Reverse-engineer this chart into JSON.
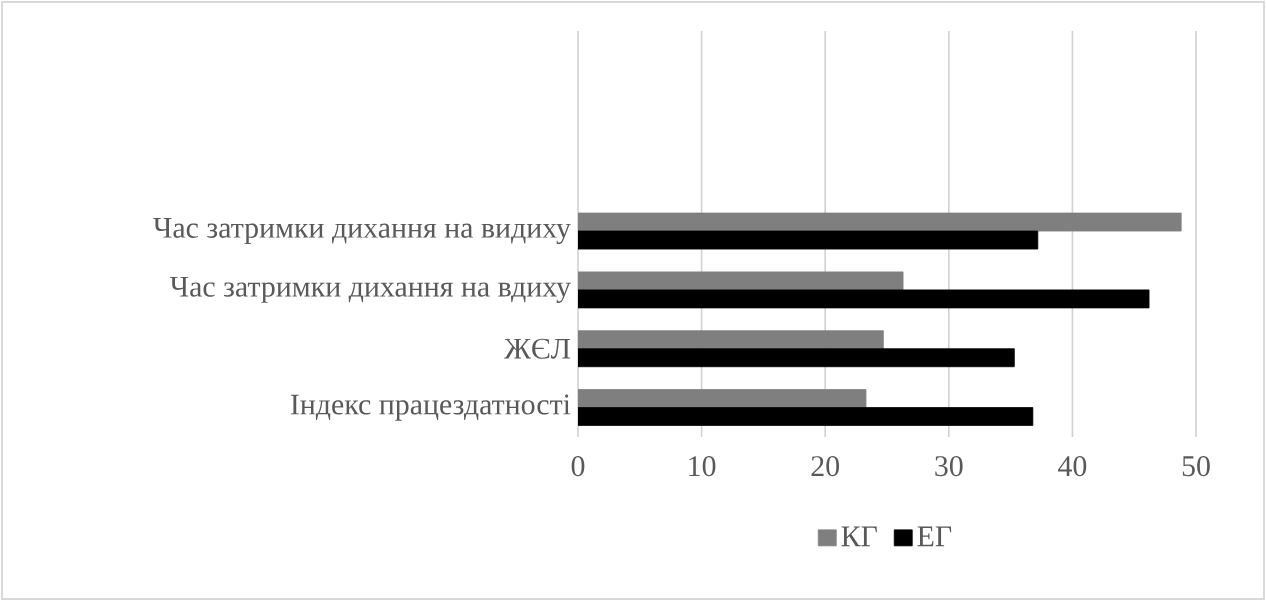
{
  "chart_data": {
    "type": "bar",
    "orientation": "horizontal",
    "categories": [
      "Час затримки дихання на видиху",
      "Час затримки дихання на вдиху",
      "ЖЄЛ",
      "Індекс працездатності"
    ],
    "series": [
      {
        "name": "КГ",
        "color": "#7f7f7f",
        "values": [
          48.8,
          26.3,
          24.7,
          23.3
        ]
      },
      {
        "name": "ЕГ",
        "color": "#000000",
        "values": [
          37.2,
          46.2,
          35.3,
          36.8
        ]
      }
    ],
    "xlim": [
      0,
      50
    ],
    "xticks": [
      0,
      10,
      20,
      30,
      40,
      50
    ],
    "grid": "x",
    "legend": "bottom"
  }
}
